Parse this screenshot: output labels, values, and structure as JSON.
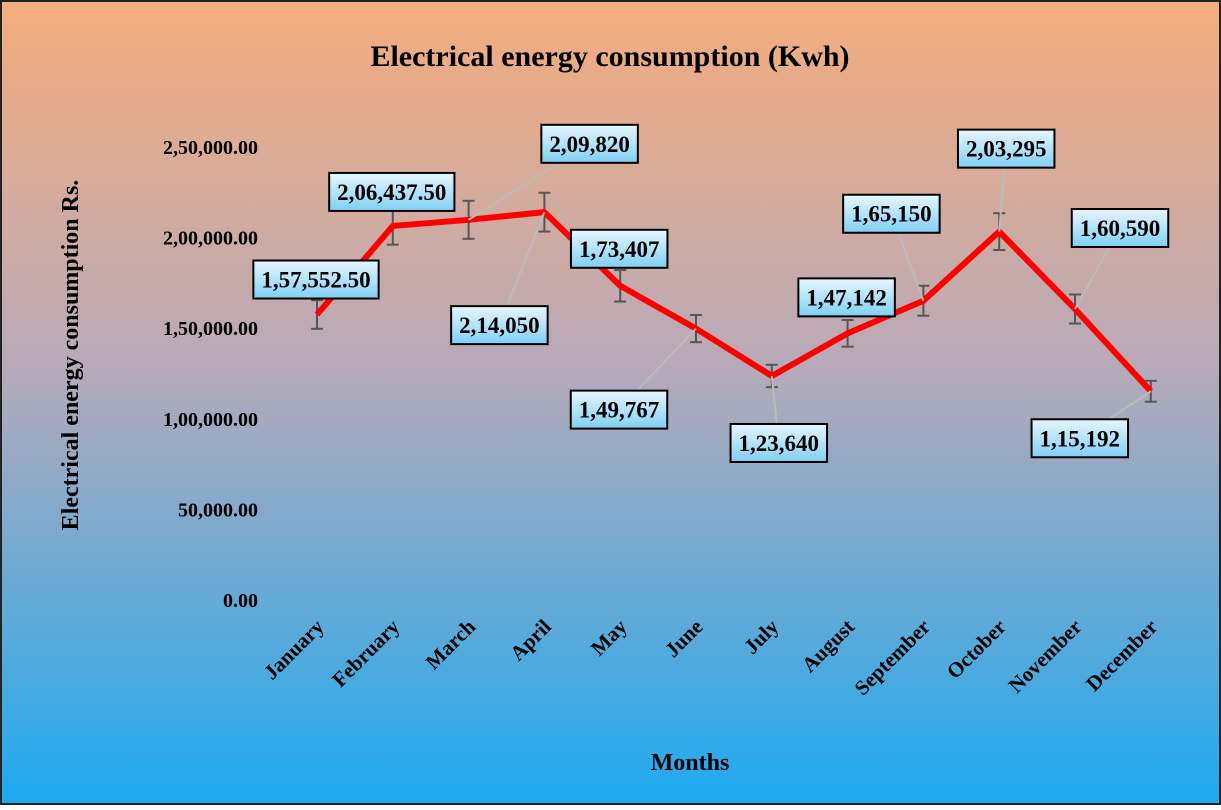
{
  "chart_data": {
    "type": "line",
    "title": "Electrical energy consumption (Kwh)",
    "x_label": "Months",
    "y_label": "Electrical energy consumption  Rs.",
    "categories": [
      "January",
      "February",
      "March",
      "April",
      "May",
      "June",
      "July",
      "August",
      "September",
      "October",
      "November",
      "December"
    ],
    "series": [
      {
        "name": "Electrical energy consumption",
        "color": "#ff0000",
        "values": [
          157552.5,
          206437.5,
          209820,
          214050,
          173407,
          149767,
          123640,
          147142,
          165150,
          203295,
          160590,
          115192
        ],
        "value_labels": [
          "1,57,552.50",
          "2,06,437.50",
          "2,09,820",
          "2,14,050",
          "1,73,407",
          "1,49,767",
          "1,23,640",
          "1,47,142",
          "1,65,150",
          "2,03,295",
          "1,60,590",
          "1,15,192"
        ],
        "errors": [
          7878,
          10322,
          10491,
          10703,
          8670,
          7488,
          6182,
          7357,
          8258,
          10165,
          8030,
          5760
        ]
      }
    ],
    "ylim": [
      0,
      250000
    ],
    "yticks": [
      {
        "value": 0,
        "label": "0.00"
      },
      {
        "value": 50000,
        "label": "50,000.00"
      },
      {
        "value": 100000,
        "label": "1,00,000.00"
      },
      {
        "value": 150000,
        "label": "1,50,000.00"
      },
      {
        "value": 200000,
        "label": "2,00,000.00"
      },
      {
        "value": 250000,
        "label": "2,50,000.00"
      }
    ],
    "grid": false
  }
}
